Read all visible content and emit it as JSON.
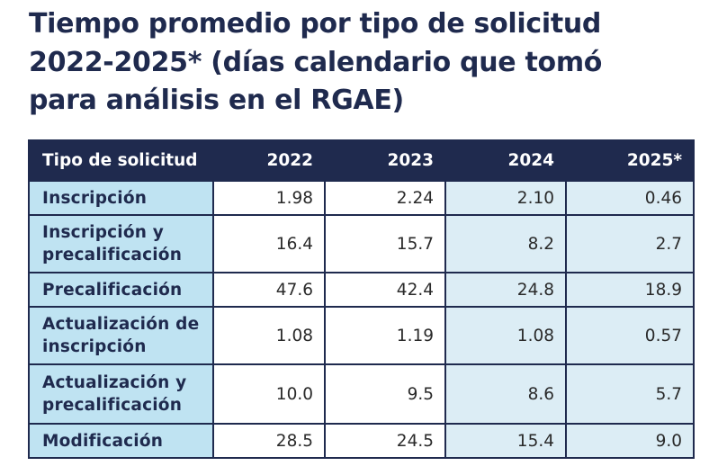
{
  "title": {
    "line1": "Tiempo promedio por tipo de solicitud",
    "line2": "2022-2025* (días calendario que tomó",
    "line3": "para análisis en el RGAE)"
  },
  "table": {
    "headers": [
      "Tipo de solicitud",
      "2022",
      "2023",
      "2024",
      "2025*"
    ],
    "rows": [
      {
        "label": "Inscripción",
        "values": [
          "1.98",
          "2.24",
          "2.10",
          "0.46"
        ]
      },
      {
        "label": "Inscripción y precalificación",
        "values": [
          "16.4",
          "15.7",
          "8.2",
          "2.7"
        ]
      },
      {
        "label": "Precalificación",
        "values": [
          "47.6",
          "42.4",
          "24.8",
          "18.9"
        ]
      },
      {
        "label": "Actualización de inscripción",
        "values": [
          "1.08",
          "1.19",
          "1.08",
          "0.57"
        ]
      },
      {
        "label": "Actualización y precalificación",
        "values": [
          "10.0",
          "9.5",
          "8.6",
          "5.7"
        ]
      },
      {
        "label": "Modificación",
        "values": [
          "28.5",
          "24.5",
          "15.4",
          "9.0"
        ]
      }
    ]
  },
  "colors": {
    "navy": "#1f2a4e",
    "label_bg": "#bfe3f2",
    "shaded_bg": "#dcedf5"
  }
}
